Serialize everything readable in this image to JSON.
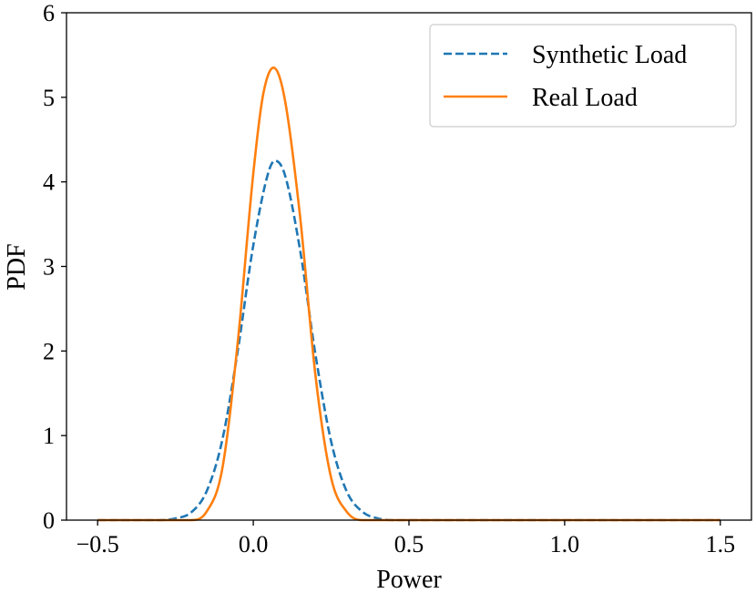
{
  "chart_data": {
    "type": "line",
    "title": "",
    "xlabel": "Power",
    "ylabel": "PDF",
    "xlim": [
      -0.6,
      1.6
    ],
    "ylim": [
      0,
      6
    ],
    "xticks": [
      -0.5,
      0.0,
      0.5,
      1.0,
      1.5
    ],
    "xtick_labels": [
      "−0.5",
      "0.0",
      "0.5",
      "1.0",
      "1.5"
    ],
    "yticks": [
      0,
      1,
      2,
      3,
      4,
      5,
      6
    ],
    "ytick_labels": [
      "0",
      "1",
      "2",
      "3",
      "4",
      "5",
      "6"
    ],
    "grid": false,
    "legend_position": "top-right",
    "series": [
      {
        "name": "Synthetic Load",
        "color": "#1f77b4",
        "style": "dashed",
        "x": [
          -0.5,
          -0.3,
          -0.25,
          -0.2,
          -0.15,
          -0.1,
          -0.05,
          0.0,
          0.05,
          0.07,
          0.1,
          0.15,
          0.2,
          0.25,
          0.3,
          0.35,
          0.4,
          0.45,
          0.5,
          1.0,
          1.5
        ],
        "y": [
          0.0,
          0.0,
          0.02,
          0.09,
          0.34,
          0.94,
          2.0,
          3.25,
          4.13,
          4.25,
          4.1,
          3.2,
          1.95,
          0.93,
          0.34,
          0.1,
          0.02,
          0.0,
          0.0,
          0.0,
          0.0
        ]
      },
      {
        "name": "Real Load",
        "color": "#ff7f0e",
        "style": "solid",
        "x": [
          -0.5,
          -0.2,
          -0.15,
          -0.1,
          -0.05,
          0.0,
          0.03,
          0.065,
          0.1,
          0.15,
          0.2,
          0.25,
          0.3,
          0.35,
          0.5,
          1.0,
          1.5
        ],
        "y": [
          0.0,
          0.0,
          0.1,
          0.6,
          2.1,
          4.1,
          5.0,
          5.35,
          5.0,
          3.6,
          1.7,
          0.5,
          0.1,
          0.0,
          0.0,
          0.0,
          0.0
        ]
      }
    ]
  }
}
